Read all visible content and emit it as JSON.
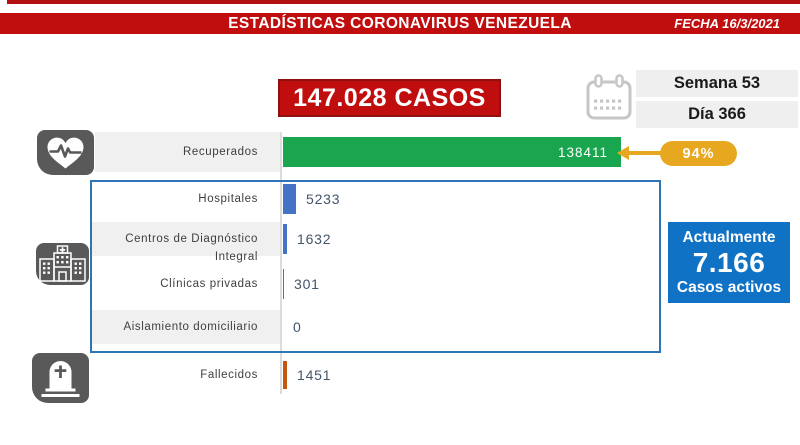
{
  "banner": {
    "title": "ESTADÍSTICAS CORONAVIRUS VENEZUELA",
    "date_label": "FECHA 16/3/2021"
  },
  "total": {
    "label": "147.028 CASOS"
  },
  "period": {
    "week": "Semana 53",
    "day": "Día 366"
  },
  "recovered_badge": {
    "percent": "94%"
  },
  "active_box": {
    "title": "Actualmente",
    "value": "7.166",
    "subtitle": "Casos activos"
  },
  "icons": {
    "recovered": "heartbeat-icon",
    "care_centers": "hospital-icon",
    "deaths": "tombstone-icon",
    "period": "calendar-icon"
  },
  "colors": {
    "red": "#C00E0E",
    "green": "#19A64E",
    "gold": "#E7A71E",
    "bar_blue": "#4472C4",
    "active_blue": "#1072C4",
    "orange": "#C4570F",
    "icon_gray": "#595959",
    "strip_gray": "#F0F0F0",
    "frame_blue": "#2E75B6",
    "value_text": "#44546A"
  },
  "chart_data": {
    "type": "bar",
    "orientation": "horizontal",
    "title": "147.028 CASOS",
    "categories": [
      "Recuperados",
      "Hospitales",
      "Centros de Diagnóstico Integral",
      "Clínicas privadas",
      "Aislamiento domiciliario",
      "Fallecidos"
    ],
    "values": [
      138411,
      5233,
      1632,
      301,
      0,
      1451
    ],
    "bar_colors": [
      "#19A64E",
      "#4472C4",
      "#4472C4",
      "#4472C4",
      "#4472C4",
      "#C4570F"
    ],
    "annotations": [
      {
        "target": "Recuperados",
        "text": "94%"
      },
      {
        "target": "Casos activos",
        "text": "7.166"
      }
    ],
    "axis": {
      "x_min": 0,
      "x_max": 138411,
      "gridlines": false,
      "legend": "none"
    }
  }
}
